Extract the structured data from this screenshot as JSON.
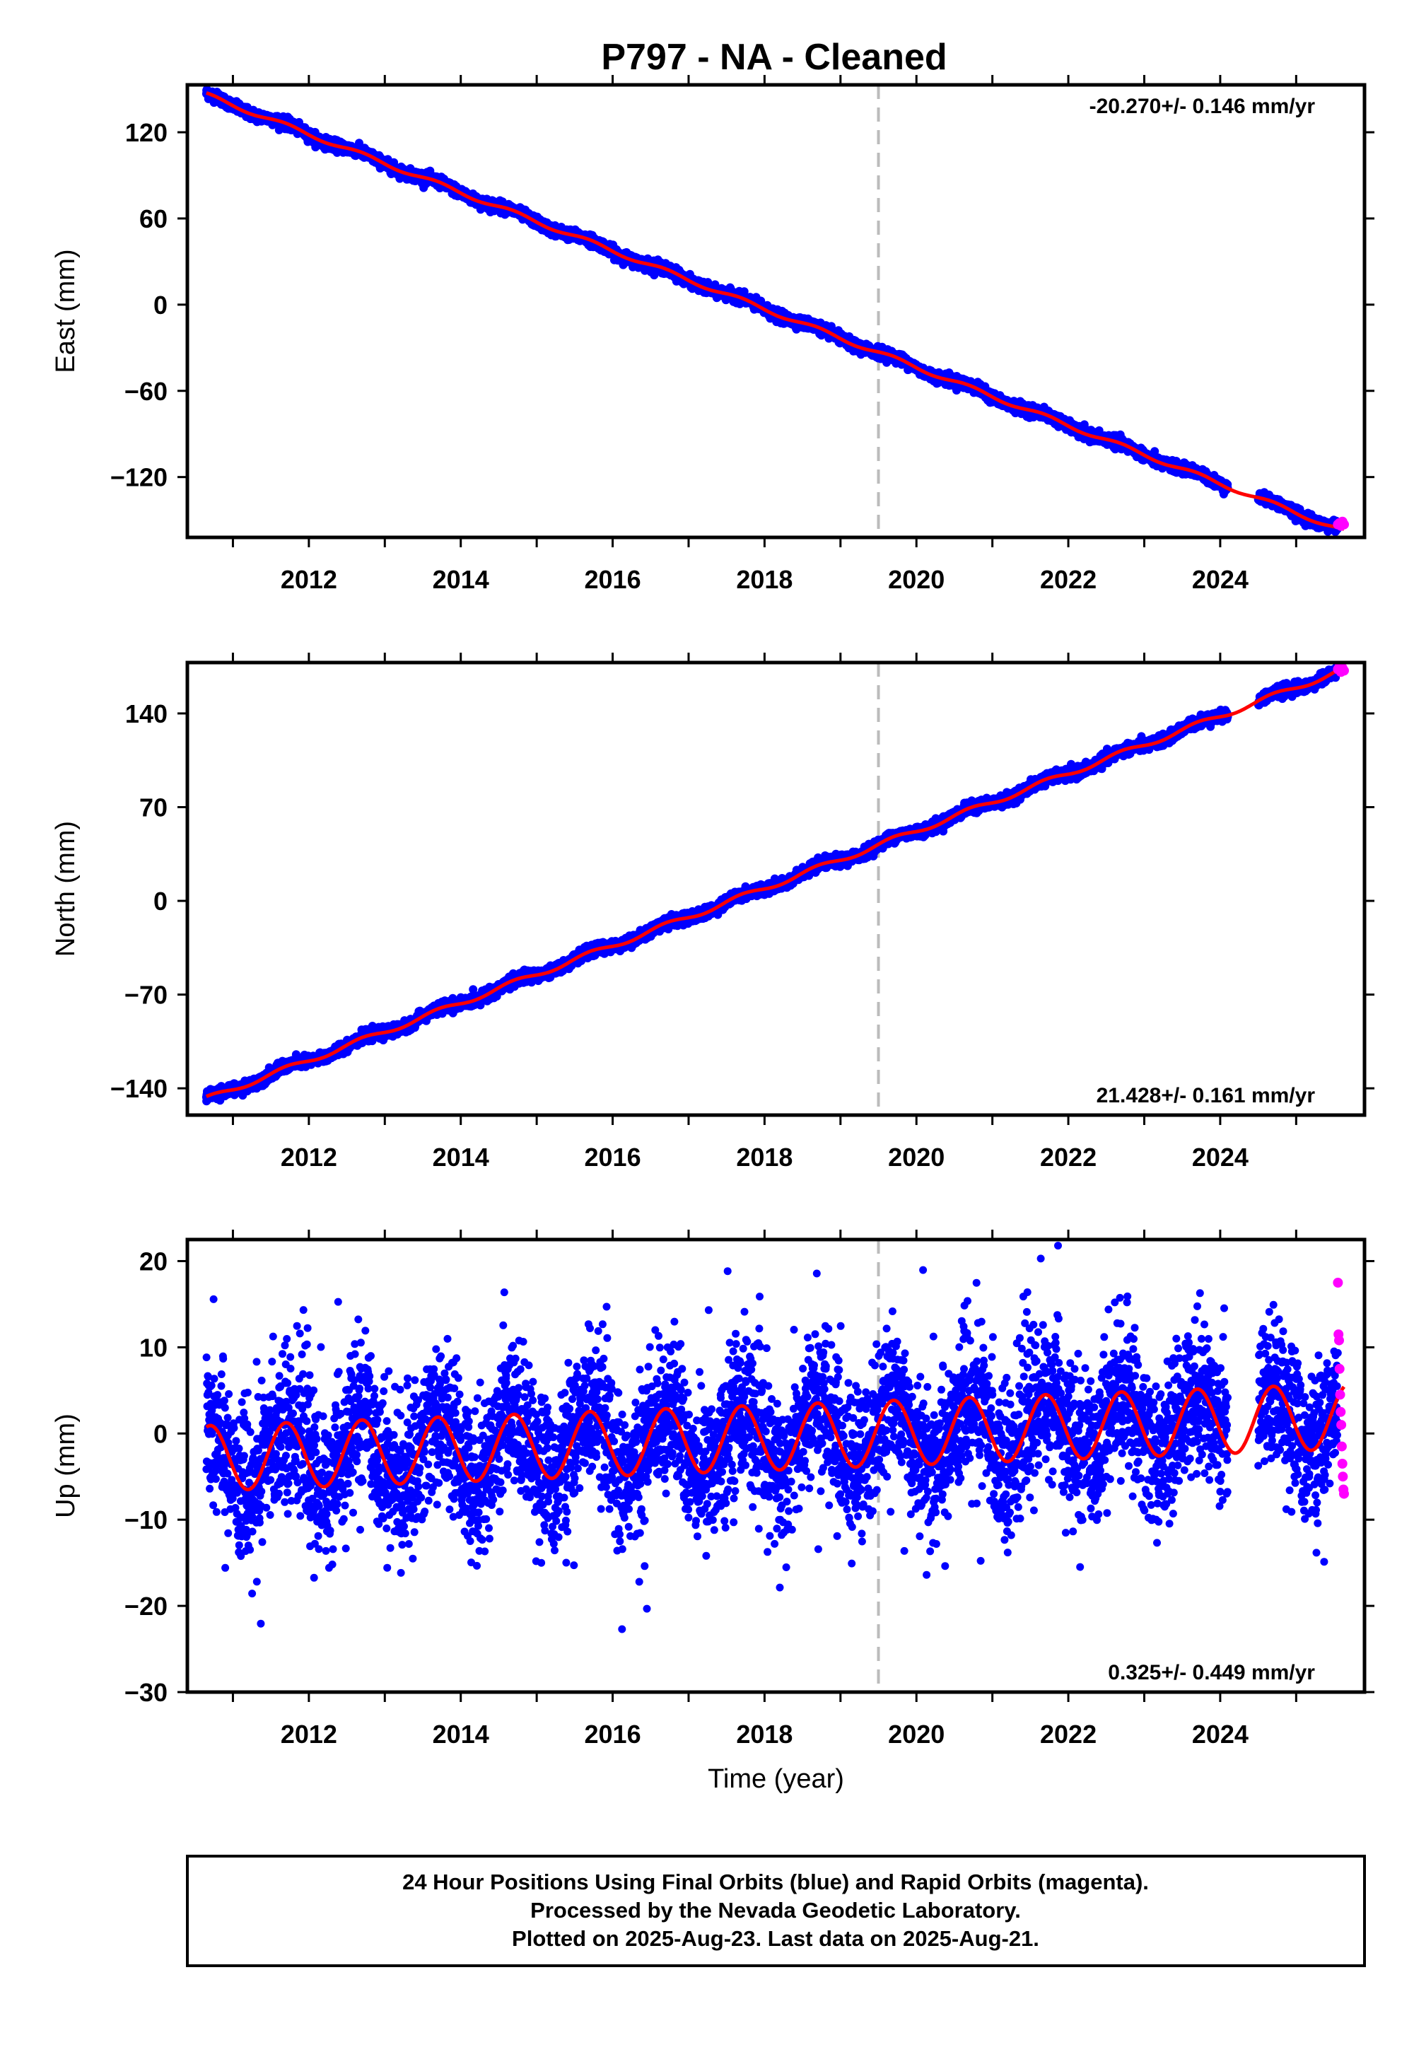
{
  "title": "P797  - NA - Cleaned",
  "colors": {
    "final_orbits": "#0000ff",
    "rapid_orbits": "#ff00ff",
    "model": "#ff0000",
    "event_line": "#bbbbbb"
  },
  "footer": {
    "line1": "24 Hour Positions Using Final Orbits (blue) and Rapid Orbits (magenta).",
    "line2": "Processed by the Nevada Geodetic Laboratory.",
    "line3": "Plotted on 2025-Aug-23. Last data on 2025-Aug-21."
  },
  "chart_data": [
    {
      "type": "scatter",
      "component": "east",
      "ylabel": "East (mm)",
      "xlabel": "",
      "xlim": [
        2010.4,
        2025.9
      ],
      "ylim": [
        -162,
        153
      ],
      "yticks": [
        120,
        60,
        0,
        -60,
        -120
      ],
      "ytick_labels": [
        "120",
        "60",
        "0",
        "−60",
        "−120"
      ],
      "xticks": [
        2012,
        2014,
        2016,
        2018,
        2020,
        2022,
        2024
      ],
      "xtick_labels": [
        "2012",
        "2014",
        "2016",
        "2018",
        "2020",
        "2022",
        "2024"
      ],
      "rate_label": "-20.270+/- 0.146 mm/yr",
      "rate_position": "top-right",
      "event_line_x": 2019.5,
      "rate_mm_per_yr": -20.27,
      "data_start": 2010.65,
      "data_end": 2025.63,
      "start_value": 146,
      "seasonal_amplitude_mm": 1.5,
      "noise_mm": 1.8,
      "data_gap": [
        2024.1,
        2024.5
      ],
      "rapid_orbit_points": {
        "x_start": 2025.55,
        "x_end": 2025.63,
        "values": [
          -153,
          -152,
          -154,
          -151,
          -153
        ]
      }
    },
    {
      "type": "scatter",
      "component": "north",
      "ylabel": "North (mm)",
      "xlabel": "",
      "xlim": [
        2010.4,
        2025.9
      ],
      "ylim": [
        -160,
        178
      ],
      "yticks": [
        140,
        70,
        0,
        -70,
        -140
      ],
      "ytick_labels": [
        "140",
        "70",
        "0",
        "−70",
        "−140"
      ],
      "xticks": [
        2012,
        2014,
        2016,
        2018,
        2020,
        2022,
        2024
      ],
      "xtick_labels": [
        "2012",
        "2014",
        "2016",
        "2018",
        "2020",
        "2022",
        "2024"
      ],
      "rate_label": "21.428+/- 0.161 mm/yr",
      "rate_position": "bottom-right",
      "event_line_x": 2019.5,
      "rate_mm_per_yr": 21.428,
      "data_start": 2010.65,
      "data_end": 2025.63,
      "start_value": -148,
      "seasonal_amplitude_mm": 2.0,
      "noise_mm": 2.0,
      "data_gap": [
        2024.1,
        2024.5
      ],
      "rapid_orbit_points": {
        "x_start": 2025.55,
        "x_end": 2025.63,
        "values": [
          173,
          175,
          171,
          174,
          172
        ]
      }
    },
    {
      "type": "scatter",
      "component": "up",
      "ylabel": "Up (mm)",
      "xlabel": "Time (year)",
      "xlim": [
        2010.4,
        2025.9
      ],
      "ylim": [
        -30,
        22.5
      ],
      "yticks": [
        20,
        10,
        0,
        -10,
        -20,
        -30
      ],
      "ytick_labels": [
        "20",
        "10",
        "0",
        "−10",
        "−20",
        "−30"
      ],
      "xticks": [
        2012,
        2014,
        2016,
        2018,
        2020,
        2022,
        2024
      ],
      "xtick_labels": [
        "2012",
        "2014",
        "2016",
        "2018",
        "2020",
        "2022",
        "2024"
      ],
      "rate_label": "0.325+/- 0.449 mm/yr",
      "rate_position": "bottom-right",
      "event_line_x": 2019.5,
      "rate_mm_per_yr": 0.325,
      "data_start": 2010.65,
      "data_end": 2025.63,
      "start_value": -0.5,
      "seasonal_amplitude_mm": 3.8,
      "noise_mm": 4.2,
      "data_gap": [
        2024.1,
        2024.5
      ],
      "rapid_orbit_points": {
        "x_start": 2025.55,
        "x_end": 2025.63,
        "values": [
          17.5,
          11.5,
          10.8,
          7.5,
          4.5,
          2.5,
          1.0,
          -1.5,
          -3.5,
          -5.0,
          -6.5,
          -7.0
        ]
      }
    }
  ]
}
